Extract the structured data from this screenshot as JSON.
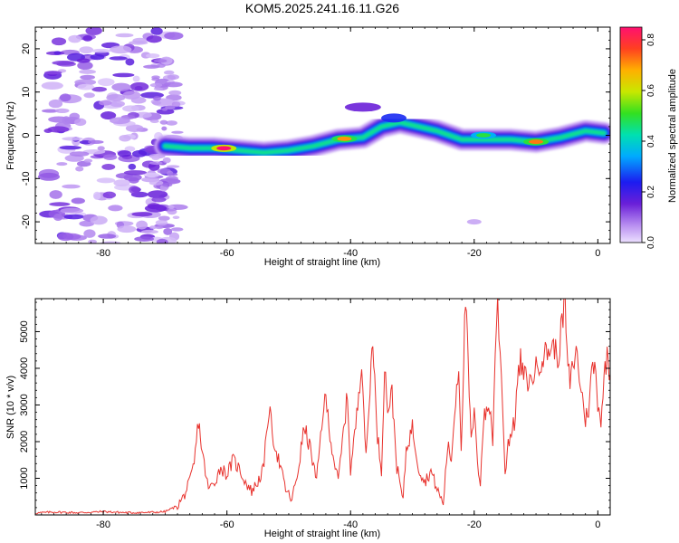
{
  "title": "KOM5.2025.241.16.11.G26",
  "colors": {
    "snr_line": "#e8322d",
    "frame": "#000000",
    "background": "#ffffff"
  },
  "chart_data": [
    {
      "type": "heatmap",
      "name": "spectrogram",
      "xlabel": "Height of straight line (km)",
      "ylabel": "Frequency (Hz)",
      "xlim": [
        -91,
        2
      ],
      "ylim": [
        -25,
        25
      ],
      "xticks": [
        -80,
        -60,
        -40,
        -20,
        0
      ],
      "yticks": [
        -20,
        -10,
        0,
        10,
        20
      ],
      "colorbar": {
        "label": "Normalized spectral amplitude",
        "range": [
          0.0,
          0.85
        ],
        "ticks": [
          0.0,
          0.2,
          0.4,
          0.6,
          0.8
        ]
      },
      "ridge": [
        {
          "x": -70,
          "y": -2.5
        },
        {
          "x": -66,
          "y": -3
        },
        {
          "x": -62,
          "y": -3
        },
        {
          "x": -58,
          "y": -3.5
        },
        {
          "x": -54,
          "y": -4
        },
        {
          "x": -50,
          "y": -3.5
        },
        {
          "x": -46,
          "y": -2.5
        },
        {
          "x": -42,
          "y": -1
        },
        {
          "x": -38,
          "y": -0.5
        },
        {
          "x": -35,
          "y": 2
        },
        {
          "x": -32,
          "y": 3
        },
        {
          "x": -29,
          "y": 2
        },
        {
          "x": -26,
          "y": 1
        },
        {
          "x": -22,
          "y": -1
        },
        {
          "x": -18,
          "y": -1
        },
        {
          "x": -14,
          "y": -1
        },
        {
          "x": -10,
          "y": -1.5
        },
        {
          "x": -6,
          "y": -0.5
        },
        {
          "x": -2,
          "y": 1
        },
        {
          "x": 1,
          "y": 0.5
        }
      ],
      "peaks": [
        {
          "x": -60.5,
          "y": -3,
          "amp": 0.85
        },
        {
          "x": -41,
          "y": -0.8,
          "amp": 0.7
        },
        {
          "x": -10,
          "y": -1.5,
          "amp": 0.72
        },
        {
          "x": -18.5,
          "y": 0,
          "amp": 0.5
        }
      ]
    },
    {
      "type": "line",
      "name": "snr",
      "xlabel": "Height of straight line (km)",
      "ylabel": "SNR (10 * v/v)",
      "xlim": [
        -91,
        2
      ],
      "ylim": [
        0,
        5900
      ],
      "xticks": [
        -80,
        -60,
        -40,
        -20,
        0
      ],
      "yticks": [
        1000,
        2000,
        3000,
        4000,
        5000
      ],
      "series": [
        {
          "name": "SNR",
          "points": [
            [
              -91,
              50
            ],
            [
              -88,
              80
            ],
            [
              -84,
              60
            ],
            [
              -80,
              90
            ],
            [
              -76,
              60
            ],
            [
              -72,
              70
            ],
            [
              -70,
              90
            ],
            [
              -68,
              250
            ],
            [
              -67,
              500
            ],
            [
              -66,
              900
            ],
            [
              -65.3,
              1400
            ],
            [
              -64.6,
              2600
            ],
            [
              -64,
              1700
            ],
            [
              -63,
              700
            ],
            [
              -62,
              900
            ],
            [
              -61,
              1300
            ],
            [
              -60,
              1100
            ],
            [
              -59,
              1500
            ],
            [
              -58,
              1250
            ],
            [
              -57,
              900
            ],
            [
              -56,
              650
            ],
            [
              -55,
              900
            ],
            [
              -54,
              1300
            ],
            [
              -53.6,
              2300
            ],
            [
              -53.2,
              2900
            ],
            [
              -52.5,
              2100
            ],
            [
              -51.5,
              1400
            ],
            [
              -50.5,
              700
            ],
            [
              -49.5,
              400
            ],
            [
              -48.5,
              1200
            ],
            [
              -47.5,
              2400
            ],
            [
              -46.5,
              1800
            ],
            [
              -45.5,
              900
            ],
            [
              -44.5,
              2800
            ],
            [
              -44,
              3150
            ],
            [
              -43,
              1800
            ],
            [
              -42,
              900
            ],
            [
              -41,
              2500
            ],
            [
              -40.5,
              3300
            ],
            [
              -40,
              1200
            ],
            [
              -39,
              2700
            ],
            [
              -38.2,
              4300
            ],
            [
              -37.5,
              1500
            ],
            [
              -37,
              3000
            ],
            [
              -36.4,
              5000
            ],
            [
              -35.8,
              2400
            ],
            [
              -35,
              1200
            ],
            [
              -34.5,
              4100
            ],
            [
              -34,
              2900
            ],
            [
              -33.3,
              3300
            ],
            [
              -32.5,
              1300
            ],
            [
              -31.5,
              400
            ],
            [
              -31,
              1800
            ],
            [
              -30,
              2400
            ],
            [
              -29,
              1300
            ],
            [
              -28,
              900
            ],
            [
              -27,
              1200
            ],
            [
              -26,
              700
            ],
            [
              -25,
              300
            ],
            [
              -24.3,
              1900
            ],
            [
              -23.7,
              1500
            ],
            [
              -23,
              3200
            ],
            [
              -22.5,
              4100
            ],
            [
              -22.1,
              1800
            ],
            [
              -21.7,
              4300
            ],
            [
              -21.4,
              5900
            ],
            [
              -21.1,
              4600
            ],
            [
              -20.5,
              2000
            ],
            [
              -20,
              2700
            ],
            [
              -19.3,
              1200
            ],
            [
              -19,
              900
            ],
            [
              -18.5,
              2600
            ],
            [
              -17.5,
              3000
            ],
            [
              -17,
              2000
            ],
            [
              -16.6,
              4500
            ],
            [
              -16.2,
              5700
            ],
            [
              -15.8,
              4400
            ],
            [
              -15.4,
              3100
            ],
            [
              -15,
              1100
            ],
            [
              -14.5,
              2000
            ],
            [
              -13.5,
              2500
            ],
            [
              -13,
              3600
            ],
            [
              -12.5,
              4200
            ],
            [
              -12,
              3800
            ],
            [
              -11,
              3600
            ],
            [
              -10,
              4000
            ],
            [
              -9,
              4300
            ],
            [
              -8,
              4500
            ],
            [
              -7,
              4600
            ],
            [
              -6.5,
              4200
            ],
            [
              -5.8,
              5200
            ],
            [
              -5.3,
              5900
            ],
            [
              -5,
              4300
            ],
            [
              -4.5,
              3600
            ],
            [
              -4,
              4100
            ],
            [
              -3.5,
              4500
            ],
            [
              -3,
              3800
            ],
            [
              -2.5,
              3200
            ],
            [
              -2,
              2600
            ],
            [
              -1.5,
              2900
            ],
            [
              -1,
              3900
            ],
            [
              -0.5,
              4100
            ],
            [
              0,
              3100
            ],
            [
              0.5,
              2600
            ],
            [
              1,
              3700
            ],
            [
              1.5,
              4400
            ],
            [
              2,
              3800
            ]
          ]
        }
      ]
    }
  ]
}
